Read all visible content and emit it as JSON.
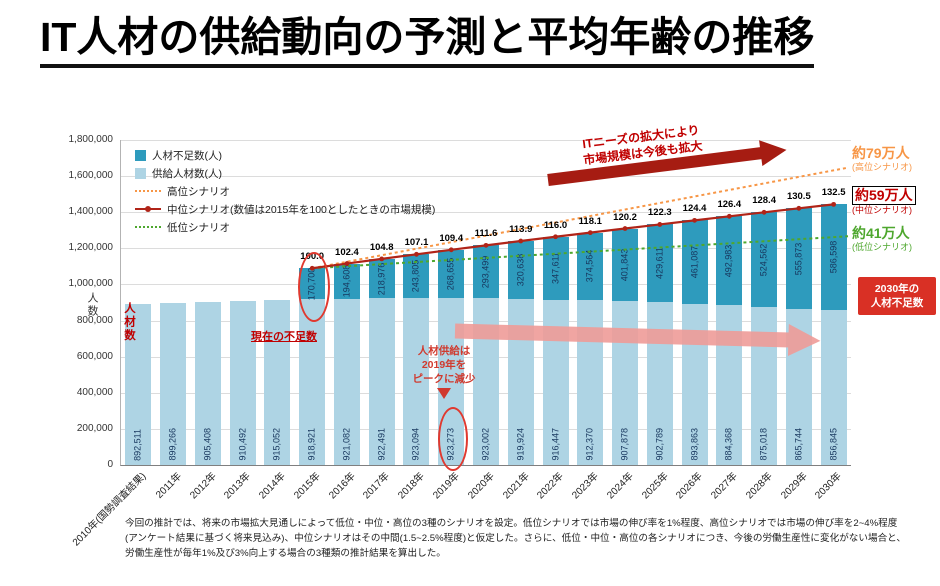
{
  "title": "IT人材の供給動向の予測と平均年齢の推移",
  "chart_data": {
    "type": "bar",
    "stacked": true,
    "ylabel": "人数",
    "ylim": [
      0,
      1800000
    ],
    "ytick_step": 200000,
    "grid": true,
    "legend_position": "top-left",
    "categories": [
      "2010年(国勢調査結果)",
      "2011年",
      "2012年",
      "2013年",
      "2014年",
      "2015年",
      "2016年",
      "2017年",
      "2018年",
      "2019年",
      "2020年",
      "2021年",
      "2022年",
      "2023年",
      "2024年",
      "2025年",
      "2026年",
      "2027年",
      "2028年",
      "2029年",
      "2030年"
    ],
    "series": [
      {
        "name": "供給人材数(人)",
        "color": "#aed4e4",
        "values": [
          892511,
          899266,
          905408,
          910492,
          915052,
          918921,
          921082,
          922491,
          923094,
          923273,
          923002,
          919924,
          916447,
          912370,
          907878,
          902789,
          893863,
          884368,
          875018,
          865744,
          856845
        ]
      },
      {
        "name": "人材不足数(人)",
        "color": "#2e9bbd",
        "values": [
          0,
          0,
          0,
          0,
          0,
          170700,
          194608,
          218976,
          243805,
          268655,
          293499,
          320638,
          347611,
          374564,
          401843,
          429611,
          461087,
          492983,
          524562,
          555873,
          586598
        ]
      }
    ],
    "index_line": {
      "name": "中位シナリオ(数値は2015年を100としたときの市場規模)",
      "color": "#b02418",
      "start_index": 5,
      "values": [
        "100.0",
        "102.4",
        "104.8",
        "107.1",
        "109.4",
        "111.6",
        "113.9",
        "116.0",
        "118.1",
        "120.2",
        "122.3",
        "124.4",
        "126.4",
        "128.4",
        "130.5",
        "132.5"
      ]
    },
    "scenarios": {
      "high": {
        "label": "高位シナリオ",
        "color": "#f79646",
        "shortage_2030": 790000
      },
      "low": {
        "label": "低位シナリオ",
        "color": "#4ea72e",
        "shortage_2030": 410000
      }
    }
  },
  "legend_items": [
    {
      "type": "square",
      "color": "#2e9bbd",
      "label": "人材不足数(人)"
    },
    {
      "type": "square",
      "color": "#aed4e4",
      "label": "供給人材数(人)"
    },
    {
      "type": "dotted",
      "color": "#f79646",
      "label": "高位シナリオ"
    },
    {
      "type": "line-dot",
      "color": "#b02418",
      "label": "中位シナリオ(数値は2015年を100としたときの市場規模)"
    },
    {
      "type": "dotted",
      "color": "#4ea72e",
      "label": "低位シナリオ"
    }
  ],
  "annotations": {
    "market_expand": "ITニーズの拡大により\n市場規模は今後も拡大",
    "current_shortage": "現在の不足数",
    "supply_peak": "人材供給は\n2019年を\nピークに減少",
    "shortage_2030": "2030年の\n人材不足数",
    "jinzai_su": "人材数"
  },
  "right_labels": [
    {
      "text": "約79万人",
      "sub": "(高位シナリオ)",
      "color": "#f79646",
      "boxed": false
    },
    {
      "text": "約59万人",
      "sub": "(中位シナリオ)",
      "color": "#c00000",
      "boxed": true
    },
    {
      "text": "約41万人",
      "sub": "(低位シナリオ)",
      "color": "#4ea72e",
      "boxed": false
    }
  ],
  "footnote": "今回の推計では、将来の市場拡大見通しによって低位・中位・高位の3種のシナリオを設定。低位シナリオでは市場の伸び率を1%程度、高位シナリオでは市場の伸び率を2~4%程度(アンケート結果に基づく将来見込み)、中位シナリオはその中間(1.5~2.5%程度)と仮定した。さらに、低位・中位・高位の各シナリオにつき、今後の労働生産性に変化がない場合と、労働生産性が毎年1%及び3%向上する場合の3種類の推計結果を算出した。"
}
